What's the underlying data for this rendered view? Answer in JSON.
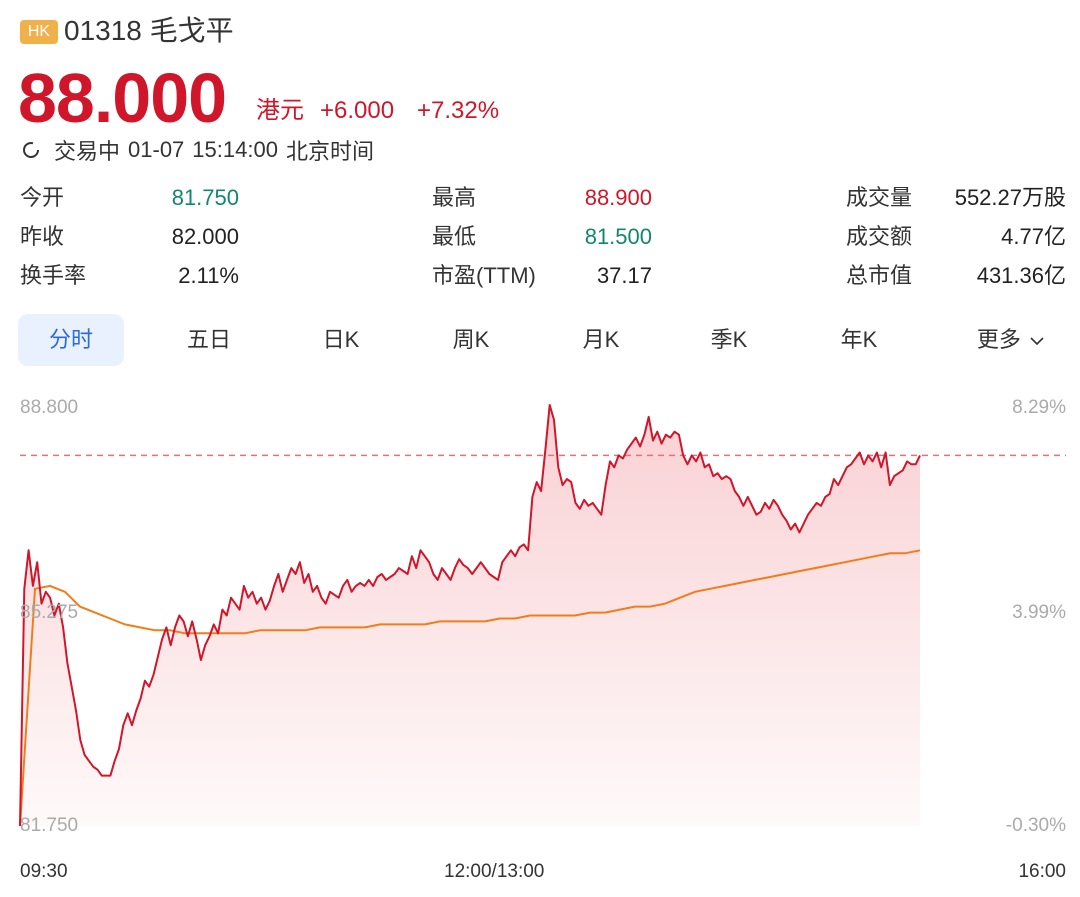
{
  "header": {
    "market_badge": "HK",
    "code": "01318",
    "name": "毛戈平"
  },
  "quote": {
    "price": "88.000",
    "currency": "港元",
    "change": "+6.000",
    "change_pct": "+7.32%",
    "status": "交易中",
    "date": "01-07",
    "time": "15:14:00",
    "timezone": "北京时间"
  },
  "stats": [
    {
      "label": "今开",
      "value": "81.750",
      "color": "#11876c"
    },
    {
      "label": "昨收",
      "value": "82.000",
      "color": "#222222"
    },
    {
      "label": "换手率",
      "value": "2.11%",
      "color": "#222222"
    },
    {
      "label": "最高",
      "value": "88.900",
      "color": "#d0162a"
    },
    {
      "label": "最低",
      "value": "81.500",
      "color": "#11876c"
    },
    {
      "label": "市盈(TTM)",
      "value": "37.17",
      "color": "#222222"
    },
    {
      "label": "成交量",
      "value": "552.27万股",
      "color": "#222222"
    },
    {
      "label": "成交额",
      "value": "4.77亿",
      "color": "#222222"
    },
    {
      "label": "总市值",
      "value": "431.36亿",
      "color": "#222222"
    }
  ],
  "tabs": [
    "分时",
    "五日",
    "日K",
    "周K",
    "月K",
    "季K",
    "年K",
    "更多"
  ],
  "active_tab": "分时",
  "chart_data": {
    "type": "line",
    "y_left_labels": [
      "88.800",
      "85.275",
      "81.750"
    ],
    "y_right_labels": [
      "8.29%",
      "3.99%",
      "-0.30%"
    ],
    "x_labels": [
      "09:30",
      "12:00/13:00",
      "16:00"
    ],
    "ylim": [
      81.75,
      88.8
    ],
    "reference_line": 88.0,
    "colors": {
      "price": "#d0162a",
      "avg": "#f07d1a",
      "reference": "#e8707a"
    },
    "series": [
      {
        "values": [
          81.75,
          85.75,
          86.4,
          85.8,
          86.2,
          85.5,
          85.7,
          85.6,
          85.3,
          85.5,
          85.1,
          84.5,
          84.1,
          83.7,
          83.2,
          82.95,
          82.85,
          82.75,
          82.7,
          82.6,
          82.6,
          82.6,
          82.85,
          83.05,
          83.45,
          83.65,
          83.45,
          83.7,
          83.9,
          84.2,
          84.1,
          84.3,
          84.6,
          84.9,
          85.1,
          84.8,
          85.1,
          85.3,
          85.2,
          84.95,
          85.2,
          84.9,
          84.55,
          84.8,
          84.95,
          85.15,
          85.0,
          85.4,
          85.3,
          85.6,
          85.5,
          85.4,
          85.8,
          85.6,
          85.7,
          85.5,
          85.6,
          85.4,
          85.55,
          85.8,
          86.0,
          85.7,
          85.9,
          86.1,
          86.0,
          86.2,
          85.85,
          86.0,
          85.7,
          85.8,
          85.6,
          85.5,
          85.7,
          85.65,
          85.6,
          85.8,
          85.9,
          85.7,
          85.8,
          85.85,
          85.8,
          85.9,
          85.8,
          85.95,
          86.0,
          85.9,
          85.95,
          86.0,
          86.1,
          86.05,
          86.0,
          86.3,
          86.1,
          86.4,
          86.3,
          86.2,
          86.0,
          85.9,
          86.1,
          86.0,
          85.9,
          86.1,
          86.25,
          86.15,
          86.1,
          86.0,
          86.1,
          86.2,
          86.1,
          86.0,
          85.95,
          85.9,
          86.2,
          86.3,
          86.4,
          86.3,
          86.45,
          86.5,
          86.4,
          87.3,
          87.55,
          87.4,
          88.1,
          88.85,
          88.6,
          87.8,
          87.5,
          87.6,
          87.55,
          87.2,
          87.1,
          87.25,
          87.15,
          87.2,
          87.1,
          87.0,
          87.5,
          87.9,
          87.8,
          88.0,
          87.95,
          88.1,
          88.2,
          88.3,
          88.15,
          88.35,
          88.65,
          88.25,
          88.4,
          88.2,
          88.35,
          88.3,
          88.4,
          88.35,
          88.0,
          87.85,
          88.0,
          87.9,
          88.05,
          87.8,
          87.85,
          87.65,
          87.7,
          87.6,
          87.65,
          87.6,
          87.4,
          87.3,
          87.15,
          87.3,
          87.15,
          87.0,
          87.05,
          87.2,
          87.1,
          87.25,
          87.15,
          87.0,
          86.9,
          86.75,
          86.85,
          86.7,
          86.85,
          87.0,
          87.1,
          87.2,
          87.15,
          87.3,
          87.35,
          87.6,
          87.5,
          87.65,
          87.8,
          87.85,
          87.95,
          88.05,
          87.85,
          88.0,
          87.9,
          88.05,
          87.8,
          88.05,
          87.5,
          87.65,
          87.7,
          87.75,
          87.9,
          87.85,
          87.85,
          88.0
        ]
      },
      {
        "values": [
          81.75,
          85.75,
          85.8,
          85.7,
          85.45,
          85.35,
          85.25,
          85.15,
          85.1,
          85.05,
          85.05,
          85.0,
          85.0,
          85.0,
          85.0,
          85.0,
          85.05,
          85.05,
          85.05,
          85.05,
          85.1,
          85.1,
          85.1,
          85.1,
          85.15,
          85.15,
          85.15,
          85.15,
          85.2,
          85.2,
          85.2,
          85.2,
          85.25,
          85.25,
          85.3,
          85.3,
          85.3,
          85.3,
          85.35,
          85.35,
          85.4,
          85.45,
          85.45,
          85.5,
          85.6,
          85.7,
          85.75,
          85.8,
          85.85,
          85.9,
          85.95,
          86.0,
          86.05,
          86.1,
          86.15,
          86.2,
          86.25,
          86.3,
          86.35,
          86.35,
          86.4
        ]
      }
    ]
  }
}
